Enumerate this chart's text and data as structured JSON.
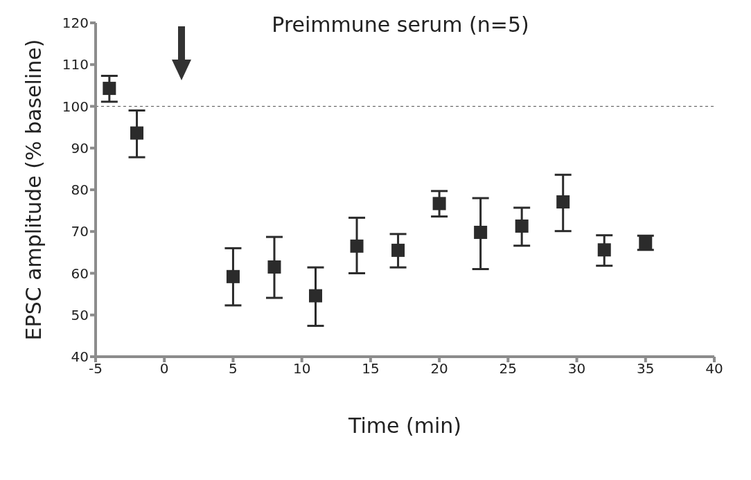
{
  "chart_data": {
    "type": "scatter",
    "title": "Preimmune serum (n=5)",
    "xlabel": "Time (min)",
    "ylabel": "EPSC amplitude (% baseline)",
    "x": [
      -4,
      -2,
      5,
      8,
      11,
      14,
      17,
      20,
      23,
      26,
      29,
      32,
      35
    ],
    "series": [
      {
        "color": "#2b2b2b",
        "values": [
          104.3,
          93.6,
          59.2,
          61.5,
          54.6,
          66.5,
          65.5,
          76.7,
          69.8,
          71.3,
          77.1,
          65.6,
          67.3
        ],
        "errors": [
          [
            101.1,
            107.3
          ],
          [
            87.8,
            99.0
          ],
          [
            52.3,
            66.0
          ],
          [
            54.1,
            68.7
          ],
          [
            47.4,
            61.4
          ],
          [
            60.0,
            73.3
          ],
          [
            61.4,
            69.4
          ],
          [
            73.6,
            79.7
          ],
          [
            61.0,
            78.0
          ],
          [
            66.6,
            75.7
          ],
          [
            70.1,
            83.6
          ],
          [
            61.8,
            69.1
          ],
          1.7
        ]
      }
    ],
    "xlim": [
      -5,
      40
    ],
    "xticks": [
      -5,
      0,
      5,
      10,
      15,
      20,
      25,
      30,
      35,
      40
    ],
    "ylim": [
      40,
      120
    ],
    "yticks": [
      40,
      50,
      60,
      70,
      80,
      90,
      100,
      110,
      120
    ],
    "ref_lines": [
      {
        "axis": "y",
        "value": 100,
        "color": "#555555",
        "line_style": "dashed"
      }
    ],
    "grid": false,
    "legend": false,
    "marker": "square"
  }
}
